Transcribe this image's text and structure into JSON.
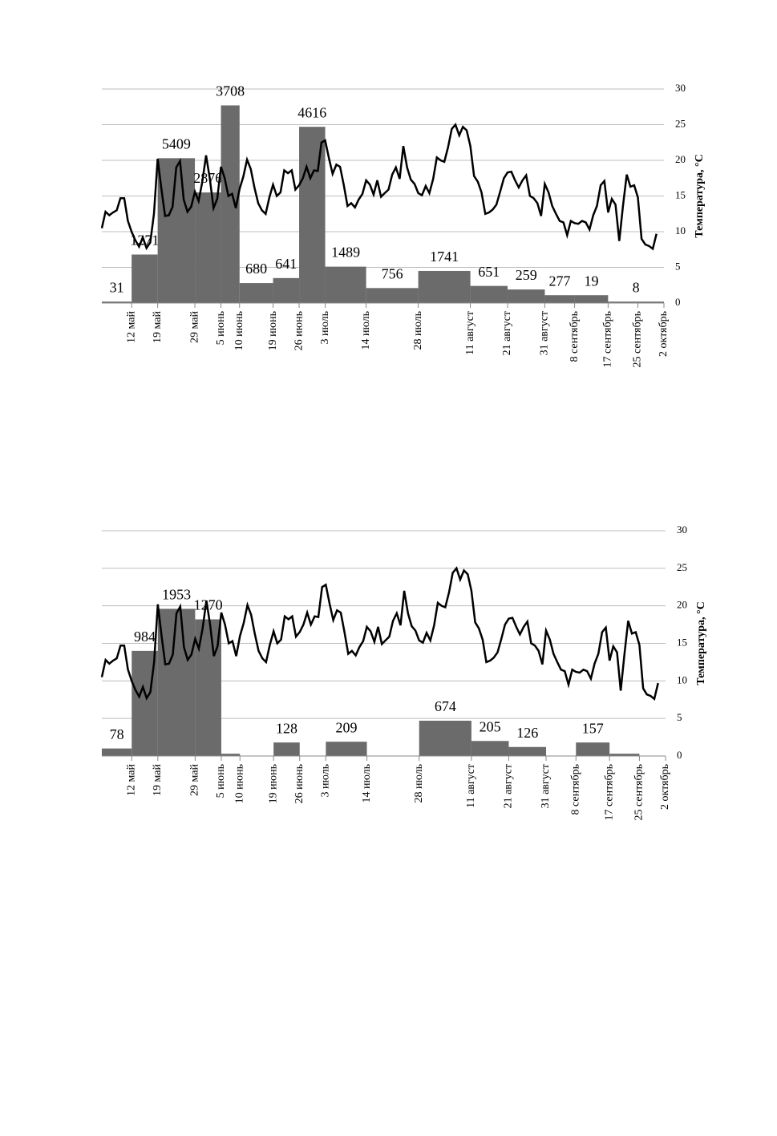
{
  "chart_data": [
    {
      "type": "bar_line",
      "xlim": [
        124,
        275
      ],
      "xticks": [
        {
          "value": 132,
          "label": "12 май"
        },
        {
          "value": 139,
          "label": "19 май"
        },
        {
          "value": 149,
          "label": "29 май"
        },
        {
          "value": 156,
          "label": "5 июнь"
        },
        {
          "value": 161,
          "label": "10 июнь"
        },
        {
          "value": 170,
          "label": "19 июнь"
        },
        {
          "value": 177,
          "label": "26 июнь"
        },
        {
          "value": 184,
          "label": "3 июль"
        },
        {
          "value": 195,
          "label": "14 июль"
        },
        {
          "value": 209,
          "label": "28 июль"
        },
        {
          "value": 223,
          "label": "11 август"
        },
        {
          "value": 233,
          "label": "21 август"
        },
        {
          "value": 243,
          "label": "31 август"
        },
        {
          "value": 251,
          "label": "8 сентябрь"
        },
        {
          "value": 260,
          "label": "17 сентябрь"
        },
        {
          "value": 268,
          "label": "25 сентябрь"
        },
        {
          "value": 275,
          "label": "2 октябрь"
        }
      ],
      "ylim": [
        0,
        30
      ],
      "yticks": [
        0,
        5,
        10,
        15,
        20,
        25,
        30
      ],
      "ylabel": "Температура, °C",
      "grid": true,
      "bars": {
        "color": "#6b6b6b",
        "start": [
          124,
          132,
          139,
          149,
          156,
          161,
          170,
          177,
          184,
          195,
          209,
          223,
          233,
          243,
          251,
          260
        ],
        "end": [
          132,
          139,
          149,
          156,
          161,
          170,
          177,
          184,
          195,
          209,
          223,
          233,
          243,
          251,
          260,
          275
        ],
        "values": [
          0.2,
          6.8,
          20.3,
          15.5,
          27.7,
          2.8,
          3.5,
          24.7,
          5.1,
          2.1,
          4.5,
          2.4,
          1.9,
          1.1,
          1.1,
          0.2
        ],
        "labels": [
          "31",
          "1271",
          "5409",
          "2876",
          "3708",
          "680",
          "641",
          "4616",
          "1489",
          "756",
          "1741",
          "651",
          "259",
          "277",
          "19",
          "8"
        ]
      },
      "line": {
        "color": "#000000",
        "x": [
          124,
          125,
          126,
          127,
          128,
          129,
          130,
          131,
          132,
          133,
          134,
          135,
          136,
          137,
          138,
          139,
          140,
          141,
          142,
          143,
          144,
          145,
          146,
          147,
          148,
          149,
          150,
          151,
          152,
          153,
          154,
          155,
          156,
          157,
          158,
          159,
          160,
          161,
          162,
          163,
          164,
          165,
          166,
          167,
          168,
          169,
          170,
          171,
          172,
          173,
          174,
          175,
          176,
          177,
          178,
          179,
          180,
          181,
          182,
          183,
          184,
          185,
          186,
          187,
          188,
          189,
          190,
          191,
          192,
          193,
          194,
          195,
          196,
          197,
          198,
          199,
          200,
          201,
          202,
          203,
          204,
          205,
          206,
          207,
          208,
          209,
          210,
          211,
          212,
          213,
          214,
          215,
          216,
          217,
          218,
          219,
          220,
          221,
          222,
          223,
          224,
          225,
          226,
          227,
          228,
          229,
          230,
          231,
          232,
          233,
          234,
          235,
          236,
          237,
          238,
          239,
          240,
          241,
          242,
          243,
          244,
          245,
          246,
          247,
          248,
          249,
          250,
          251,
          252,
          253,
          254,
          255,
          256,
          257,
          258,
          259,
          260,
          261,
          262,
          263,
          264,
          265,
          266,
          267,
          268,
          269,
          270,
          271,
          272,
          273
        ],
        "values": [
          10.5,
          12.8,
          12.3,
          12.7,
          13.0,
          14.7,
          14.7,
          11.5,
          10,
          8.8,
          7.9,
          9.2,
          7.7,
          8.5,
          12.5,
          20.2,
          16,
          12.2,
          12.3,
          13.5,
          19,
          19.9,
          14.5,
          12.8,
          13.5,
          15.6,
          14.3,
          17,
          20.7,
          17.5,
          13.3,
          14.6,
          19.1,
          17.5,
          15,
          15.3,
          13.3,
          16,
          17.7,
          20.1,
          18.8,
          16.2,
          14,
          13,
          12.5,
          14.8,
          16.6,
          15,
          15.5,
          18.6,
          18.2,
          18.6,
          15.9,
          16.5,
          17.5,
          19.1,
          17.5,
          18.6,
          18.5,
          22.5,
          22.8,
          20.3,
          18.1,
          19.4,
          19.1,
          16.5,
          13.6,
          14,
          13.4,
          14.5,
          15.3,
          17.2,
          16.6,
          15.2,
          17.2,
          14.9,
          15.4,
          15.9,
          18,
          19,
          17.4,
          22,
          19,
          17.3,
          16.7,
          15.4,
          15.1,
          16.4,
          15.4,
          17.4,
          20.4,
          20,
          19.8,
          21.8,
          24.4,
          25,
          23.5,
          24.7,
          24.2,
          22,
          17.8,
          17,
          15.5,
          12.5,
          12.7,
          13.1,
          13.8,
          15.6,
          17.5,
          18.3,
          18.4,
          17.2,
          16.2,
          17.2,
          17.9,
          15,
          14.7,
          14,
          12.2,
          16.7,
          15.5,
          13.6,
          12.5,
          11.5,
          11.3,
          9.5,
          11.5,
          11.2,
          11.1,
          11.5,
          11.3,
          10.3,
          12.3,
          13.6,
          16.5,
          17.1,
          12.7,
          14.6,
          13.8,
          8.7,
          13.6,
          18,
          16.3,
          16.5,
          14.8,
          9,
          8.2,
          8,
          7.6,
          9.7
        ]
      }
    },
    {
      "type": "bar_line",
      "xlim": [
        124,
        275
      ],
      "xticks": [
        {
          "value": 132,
          "label": "12 май"
        },
        {
          "value": 139,
          "label": "19 май"
        },
        {
          "value": 149,
          "label": "29 май"
        },
        {
          "value": 156,
          "label": "5 июнь"
        },
        {
          "value": 161,
          "label": "10 июнь"
        },
        {
          "value": 170,
          "label": "19 июнь"
        },
        {
          "value": 177,
          "label": "26 июнь"
        },
        {
          "value": 184,
          "label": "3 июль"
        },
        {
          "value": 195,
          "label": "14 июль"
        },
        {
          "value": 209,
          "label": "28 июль"
        },
        {
          "value": 223,
          "label": "11 август"
        },
        {
          "value": 233,
          "label": "21 август"
        },
        {
          "value": 243,
          "label": "31 август"
        },
        {
          "value": 251,
          "label": "8 сентябрь"
        },
        {
          "value": 260,
          "label": "17 сентябрь"
        },
        {
          "value": 268,
          "label": "25 сентябрь"
        },
        {
          "value": 275,
          "label": "2 октябрь"
        }
      ],
      "ylim": [
        0,
        30
      ],
      "yticks": [
        0,
        5,
        10,
        15,
        20,
        25,
        30
      ],
      "ylabel": "Температура, °C",
      "grid": true,
      "bars": {
        "color": "#6b6b6b",
        "start": [
          124,
          132,
          139,
          149,
          156,
          170,
          184,
          209,
          223,
          233,
          251,
          260
        ],
        "end": [
          132,
          139,
          149,
          156,
          161,
          177,
          195,
          223,
          233,
          243,
          260,
          268
        ],
        "values": [
          1.0,
          14.0,
          19.6,
          18.2,
          0.3,
          1.8,
          1.9,
          4.7,
          2.0,
          1.2,
          1.8,
          0.3
        ],
        "labels": [
          "78",
          "984",
          "1953",
          "1270",
          null,
          "128",
          "209",
          "674",
          "205",
          "126",
          "157",
          null
        ]
      },
      "line": {
        "color": "#000000",
        "x": [
          124,
          125,
          126,
          127,
          128,
          129,
          130,
          131,
          132,
          133,
          134,
          135,
          136,
          137,
          138,
          139,
          140,
          141,
          142,
          143,
          144,
          145,
          146,
          147,
          148,
          149,
          150,
          151,
          152,
          153,
          154,
          155,
          156,
          157,
          158,
          159,
          160,
          161,
          162,
          163,
          164,
          165,
          166,
          167,
          168,
          169,
          170,
          171,
          172,
          173,
          174,
          175,
          176,
          177,
          178,
          179,
          180,
          181,
          182,
          183,
          184,
          185,
          186,
          187,
          188,
          189,
          190,
          191,
          192,
          193,
          194,
          195,
          196,
          197,
          198,
          199,
          200,
          201,
          202,
          203,
          204,
          205,
          206,
          207,
          208,
          209,
          210,
          211,
          212,
          213,
          214,
          215,
          216,
          217,
          218,
          219,
          220,
          221,
          222,
          223,
          224,
          225,
          226,
          227,
          228,
          229,
          230,
          231,
          232,
          233,
          234,
          235,
          236,
          237,
          238,
          239,
          240,
          241,
          242,
          243,
          244,
          245,
          246,
          247,
          248,
          249,
          250,
          251,
          252,
          253,
          254,
          255,
          256,
          257,
          258,
          259,
          260,
          261,
          262,
          263,
          264,
          265,
          266,
          267,
          268,
          269,
          270,
          271,
          272,
          273
        ],
        "values": [
          10.5,
          12.8,
          12.3,
          12.7,
          13.0,
          14.7,
          14.7,
          11.5,
          10,
          8.8,
          7.9,
          9.2,
          7.7,
          8.5,
          12.5,
          20.2,
          16,
          12.2,
          12.3,
          13.5,
          19,
          19.9,
          14.5,
          12.8,
          13.5,
          15.6,
          14.3,
          17,
          20.7,
          17.5,
          13.3,
          14.6,
          19.1,
          17.5,
          15,
          15.3,
          13.3,
          16,
          17.7,
          20.1,
          18.8,
          16.2,
          14,
          13,
          12.5,
          14.8,
          16.6,
          15,
          15.5,
          18.6,
          18.2,
          18.6,
          15.9,
          16.5,
          17.5,
          19.1,
          17.5,
          18.6,
          18.5,
          22.5,
          22.8,
          20.3,
          18.1,
          19.4,
          19.1,
          16.5,
          13.6,
          14,
          13.4,
          14.5,
          15.3,
          17.2,
          16.6,
          15.2,
          17.2,
          14.9,
          15.4,
          15.9,
          18,
          19,
          17.4,
          22,
          19,
          17.3,
          16.7,
          15.4,
          15.1,
          16.4,
          15.4,
          17.4,
          20.4,
          20,
          19.8,
          21.8,
          24.4,
          25,
          23.5,
          24.7,
          24.2,
          22,
          17.8,
          17,
          15.5,
          12.5,
          12.7,
          13.1,
          13.8,
          15.6,
          17.5,
          18.3,
          18.4,
          17.2,
          16.2,
          17.2,
          17.9,
          15,
          14.7,
          14,
          12.2,
          16.7,
          15.5,
          13.6,
          12.5,
          11.5,
          11.3,
          9.5,
          11.5,
          11.2,
          11.1,
          11.5,
          11.3,
          10.3,
          12.3,
          13.6,
          16.5,
          17.1,
          12.7,
          14.6,
          13.8,
          8.7,
          13.6,
          18,
          16.3,
          16.5,
          14.8,
          9,
          8.2,
          8,
          7.6,
          9.7
        ]
      }
    }
  ]
}
